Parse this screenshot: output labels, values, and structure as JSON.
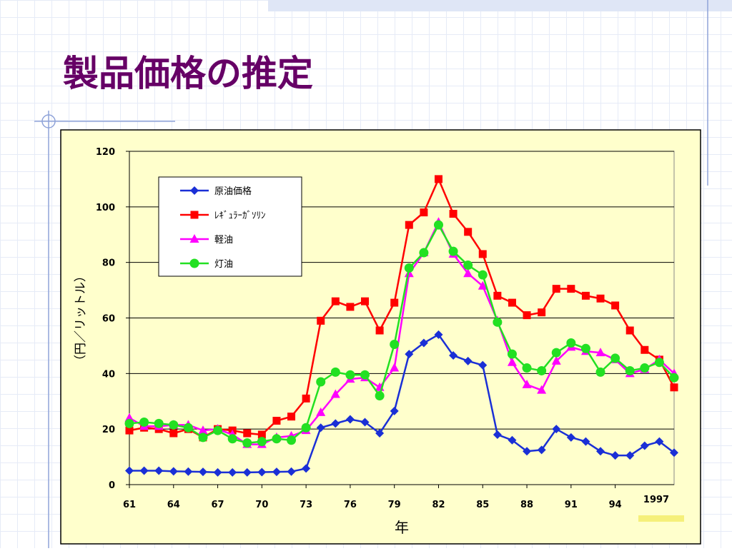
{
  "chart_data": {
    "type": "line",
    "title": "製品価格の推定",
    "x_label": "年",
    "y_label": "（円／リットル）",
    "annotation": "1997",
    "x": [
      61,
      62,
      63,
      64,
      65,
      66,
      67,
      68,
      69,
      70,
      71,
      72,
      73,
      74,
      75,
      76,
      77,
      78,
      79,
      80,
      81,
      82,
      83,
      84,
      85,
      86,
      87,
      88,
      89,
      90,
      91,
      92,
      93,
      94,
      95,
      96,
      97,
      98
    ],
    "xlim": [
      61,
      98
    ],
    "xticks": [
      61,
      64,
      67,
      70,
      73,
      76,
      79,
      82,
      85,
      88,
      91,
      94
    ],
    "ylim": [
      0,
      120
    ],
    "yticks": [
      0,
      20,
      40,
      60,
      80,
      100,
      120
    ],
    "grid": true,
    "legend": "upper left",
    "series": [
      {
        "name": "原油価格",
        "color": "#1a2fd6",
        "marker": "diamond",
        "values": [
          5,
          5,
          5,
          4.8,
          4.7,
          4.6,
          4.4,
          4.4,
          4.4,
          4.5,
          4.6,
          4.7,
          5.8,
          20.5,
          22,
          23.5,
          22.5,
          18.5,
          26.5,
          47,
          51,
          54,
          46.5,
          44.5,
          43,
          18,
          16,
          12,
          12.5,
          20,
          17,
          15.5,
          12,
          10.5,
          10.5,
          14,
          15.5,
          11.5
        ]
      },
      {
        "name": "ﾚｷﾞｭﾗｰｶﾞｿﾘﾝ",
        "color": "#ff0000",
        "marker": "square",
        "values": [
          19.5,
          20.5,
          20,
          18.5,
          20,
          17,
          20,
          19.5,
          18.5,
          18,
          23,
          24.5,
          31,
          59,
          66,
          64,
          66,
          55.5,
          65.5,
          93.5,
          98,
          110,
          97.5,
          91,
          83,
          68,
          65.5,
          61,
          62,
          70.5,
          70.5,
          68,
          67,
          64.5,
          55.5,
          48.5,
          45,
          35
        ]
      },
      {
        "name": "軽油",
        "color": "#ff00ff",
        "marker": "triangle",
        "values": [
          24,
          21,
          21,
          21.5,
          21.5,
          19.5,
          20,
          18,
          14.5,
          14.5,
          17,
          17.5,
          19.5,
          26,
          32.5,
          38,
          38.5,
          35,
          42,
          76,
          83.5,
          94.5,
          83,
          76,
          71.5,
          59,
          44,
          36,
          34,
          44.5,
          49.5,
          48,
          47.5,
          45,
          40,
          41.5,
          45,
          40
        ]
      },
      {
        "name": "灯油",
        "color": "#22e022",
        "marker": "circle",
        "values": [
          22,
          22.5,
          22,
          21.5,
          20.5,
          17,
          19.5,
          16.5,
          15,
          15.5,
          16.5,
          16,
          20.5,
          37,
          40.5,
          39.5,
          39.5,
          32,
          50.5,
          78,
          83.5,
          93.5,
          84,
          79,
          75.5,
          58.5,
          47,
          42,
          41,
          47.5,
          51,
          49,
          40.5,
          45.5,
          41,
          42,
          44,
          38.5
        ]
      }
    ]
  }
}
